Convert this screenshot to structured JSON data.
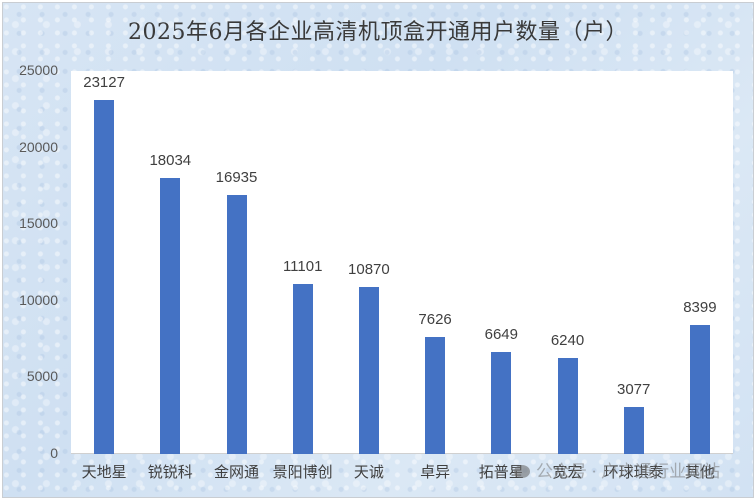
{
  "chart_data": {
    "type": "bar",
    "title": "2025年6月各企业高清机顶盒开通用户数量（户）",
    "xlabel": "",
    "ylabel": "",
    "ylim": [
      0,
      25000
    ],
    "yticks": [
      0,
      5000,
      10000,
      15000,
      20000,
      25000
    ],
    "grid": false,
    "legend": "none",
    "bar_color": "#4472C4",
    "categories": [
      "天地星",
      "锐锐科",
      "金网通",
      "景阳博创",
      "天诚",
      "卓异",
      "拓普星",
      "宽宏",
      "环球琪泰",
      "其他"
    ],
    "values": [
      23127,
      18034,
      16935,
      11101,
      10870,
      7626,
      6649,
      6240,
      3077,
      8399
    ],
    "data_labels": [
      "23127",
      "18034",
      "16935",
      "11101",
      "10870",
      "7626",
      "6649",
      "6240",
      "3077",
      "8399"
    ]
  },
  "ytick_labels": [
    "0",
    "5000",
    "10000",
    "15000",
    "20000",
    "25000"
  ],
  "watermark": "公众号 · 户户通行业网站"
}
